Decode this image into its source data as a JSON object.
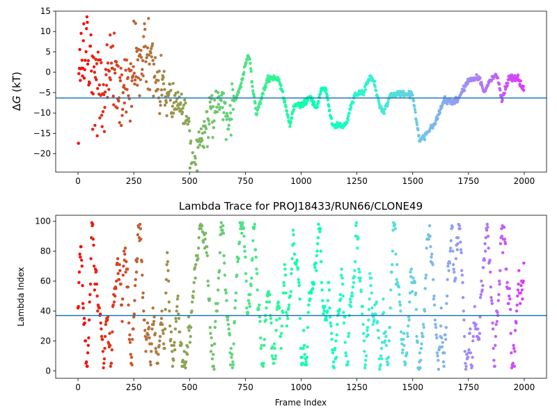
{
  "figure": {
    "hline_color": "#1f77b4",
    "colormap": "rainbow"
  },
  "chart_data": [
    {
      "type": "scatter",
      "title": "",
      "xlabel": "",
      "ylabel": "ΔG (kT)",
      "ylabel_symbol": "Δ",
      "ylabel_var": "G",
      "ylabel_unit": " (kT)",
      "xlim": [
        -100,
        2100
      ],
      "ylim": [
        -24.5,
        15
      ],
      "xticks": [
        0,
        250,
        500,
        750,
        1000,
        1250,
        1500,
        1750,
        2000
      ],
      "yticks": [
        15,
        10,
        5,
        0,
        -5,
        -10,
        -15,
        -20
      ],
      "hline": -6.3,
      "grid": false,
      "points_shown": 2000,
      "color_by": "frame index",
      "profile": [
        [
          0,
          1
        ],
        [
          20,
          4
        ],
        [
          40,
          5
        ],
        [
          60,
          2
        ],
        [
          80,
          -1
        ],
        [
          100,
          -5
        ],
        [
          130,
          0
        ],
        [
          160,
          -2
        ],
        [
          200,
          -6
        ],
        [
          250,
          1
        ],
        [
          300,
          4
        ],
        [
          340,
          1
        ],
        [
          370,
          -3
        ],
        [
          400,
          -5
        ],
        [
          430,
          -8
        ],
        [
          460,
          -9
        ],
        [
          490,
          -11
        ],
        [
          505,
          -18
        ],
        [
          520,
          -23
        ],
        [
          560,
          -15
        ],
        [
          600,
          -10
        ],
        [
          640,
          -6
        ],
        [
          660,
          -11
        ],
        [
          670,
          -14
        ],
        [
          690,
          -8
        ],
        [
          720,
          -5
        ],
        [
          740,
          -1
        ],
        [
          760,
          4
        ],
        [
          770,
          3
        ],
        [
          785,
          -5
        ],
        [
          800,
          -10
        ],
        [
          830,
          -5
        ],
        [
          850,
          -1.5
        ],
        [
          900,
          -1.5
        ],
        [
          930,
          -8
        ],
        [
          950,
          -13
        ],
        [
          970,
          -8
        ],
        [
          1010,
          -8
        ],
        [
          1040,
          -6
        ],
        [
          1070,
          -9
        ],
        [
          1090,
          -4
        ],
        [
          1110,
          -4
        ],
        [
          1140,
          -13
        ],
        [
          1200,
          -13
        ],
        [
          1240,
          -5.5
        ],
        [
          1280,
          -5
        ],
        [
          1310,
          -1
        ],
        [
          1330,
          -3
        ],
        [
          1350,
          -8
        ],
        [
          1370,
          -10
        ],
        [
          1400,
          -5.5
        ],
        [
          1450,
          -5.2
        ],
        [
          1500,
          -5.5
        ],
        [
          1530,
          -17
        ],
        [
          1560,
          -15
        ],
        [
          1600,
          -12.5
        ],
        [
          1640,
          -7
        ],
        [
          1700,
          -7
        ],
        [
          1740,
          -3
        ],
        [
          1760,
          -1.5
        ],
        [
          1800,
          -1.5
        ],
        [
          1820,
          -5
        ],
        [
          1850,
          -1.5
        ],
        [
          1880,
          -0.5
        ],
        [
          1900,
          -7
        ],
        [
          1930,
          -1.5
        ],
        [
          1970,
          -1.5
        ],
        [
          2000,
          -4.5
        ]
      ]
    },
    {
      "type": "scatter",
      "title": "Lambda Trace for PROJ18433/RUN66/CLONE49",
      "xlabel": "Frame Index",
      "ylabel": "Lambda Index",
      "xlim": [
        -100,
        2100
      ],
      "ylim": [
        -5,
        104
      ],
      "xticks": [
        0,
        250,
        500,
        750,
        1000,
        1250,
        1500,
        1750,
        2000
      ],
      "yticks": [
        0,
        20,
        40,
        60,
        80,
        100
      ],
      "hline": 37,
      "grid": false,
      "points_shown": 2000,
      "color_by": "frame index",
      "band_centers": [
        [
          0,
          50
        ],
        [
          40,
          60
        ],
        [
          80,
          50
        ],
        [
          120,
          55
        ],
        [
          160,
          50
        ],
        [
          200,
          55
        ],
        [
          250,
          50
        ],
        [
          300,
          55
        ],
        [
          350,
          45
        ],
        [
          400,
          50
        ],
        [
          450,
          45
        ],
        [
          500,
          40
        ],
        [
          550,
          45
        ],
        [
          600,
          50
        ],
        [
          650,
          50
        ],
        [
          700,
          45
        ],
        [
          750,
          50
        ],
        [
          800,
          45
        ],
        [
          850,
          50
        ],
        [
          900,
          55
        ],
        [
          950,
          60
        ],
        [
          1000,
          40
        ],
        [
          1050,
          45
        ],
        [
          1100,
          70
        ],
        [
          1150,
          55
        ],
        [
          1200,
          40
        ],
        [
          1250,
          35
        ],
        [
          1300,
          60
        ],
        [
          1350,
          50
        ],
        [
          1400,
          40
        ],
        [
          1450,
          45
        ],
        [
          1500,
          80
        ],
        [
          1550,
          50
        ],
        [
          1600,
          40
        ],
        [
          1650,
          55
        ],
        [
          1700,
          30
        ],
        [
          1750,
          40
        ],
        [
          1800,
          60
        ],
        [
          1850,
          45
        ],
        [
          1900,
          55
        ],
        [
          1950,
          45
        ],
        [
          2000,
          55
        ]
      ]
    }
  ]
}
